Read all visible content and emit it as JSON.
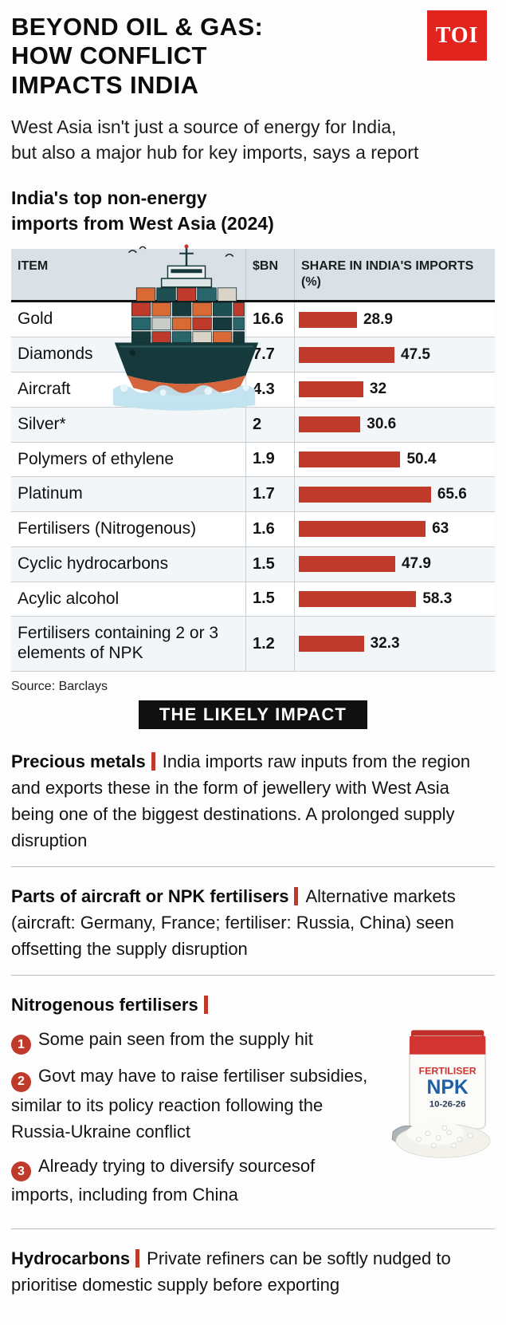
{
  "colors": {
    "accent": "#bf3a2b",
    "logo_red": "#e3231d",
    "table_head_bg": "#d9e0e6",
    "badge_bg": "#101010"
  },
  "header": {
    "title_lines": [
      "BEYOND OIL & GAS:",
      "HOW CONFLICT",
      "IMPACTS INDIA"
    ],
    "logo_text": "TOI",
    "subtitle_lines": [
      "West Asia isn't just a source of energy for India,",
      "but also a major hub for key imports, says a report"
    ]
  },
  "table": {
    "title_lines": [
      "India's top non-energy",
      "imports from West Asia (2024)"
    ],
    "headers": {
      "item": "ITEM",
      "bn": "$BN",
      "share": "SHARE IN INDIA'S IMPORTS (%)"
    },
    "source": "Source: Barclays"
  },
  "chart_data": {
    "type": "bar",
    "title": "India's top non-energy imports from West Asia (2024)",
    "categories": [
      "Gold",
      "Diamonds",
      "Aircraft",
      "Silver*",
      "Polymers of ethylene",
      "Platinum",
      "Fertilisers (Nitrogenous)",
      "Cyclic hydrocarbons",
      "Acylic alcohol",
      "Fertilisers containing 2 or 3 elements of NPK"
    ],
    "series": [
      {
        "name": "$BN",
        "values": [
          16.6,
          7.7,
          4.3,
          2,
          1.9,
          1.7,
          1.6,
          1.5,
          1.5,
          1.2
        ]
      },
      {
        "name": "Share in India's imports (%)",
        "values": [
          28.9,
          47.5,
          32,
          30.6,
          50.4,
          65.6,
          63,
          47.9,
          58.3,
          32.3
        ]
      }
    ],
    "xlabel": "",
    "ylabel": "",
    "xlim": [
      0,
      100
    ],
    "grid": false,
    "legend": "none",
    "source": "Barclays"
  },
  "impact": {
    "badge": "THE LIKELY IMPACT",
    "sections": [
      {
        "lead": "Precious metals",
        "text": "India imports raw inputs from the region and exports these in the form of jewellery with West Asia being one of the biggest destinations. A prolonged supply disruption"
      },
      {
        "lead": "Parts of aircraft or NPK fertilisers",
        "text": "Alternative markets (aircraft: Germany, France; fertiliser: Russia, China) seen offsetting the supply disruption"
      },
      {
        "lead": "Nitrogenous fertilisers",
        "points": [
          {
            "num": "1",
            "text": "Some pain seen from the supply hit"
          },
          {
            "num": "2",
            "text": "Govt may have to raise fertiliser subsidies, similar to its policy reaction following the Russia-Ukraine conflict"
          },
          {
            "num": "3",
            "text": "Already trying to diversify sourcesof imports, including from China"
          }
        ]
      },
      {
        "lead": "Hydrocarbons",
        "text": "Private refiners can be softly nudged to prioritise domestic supply before exporting"
      }
    ],
    "bag": {
      "line1": "FERTILISER",
      "line2": "NPK",
      "line3": "10-26-26"
    }
  }
}
